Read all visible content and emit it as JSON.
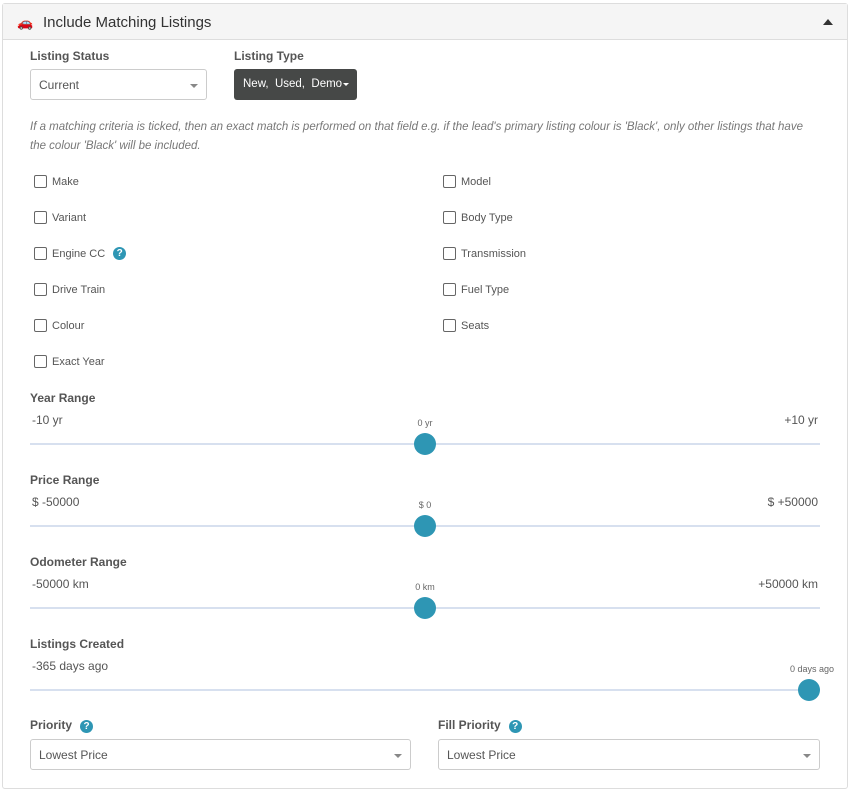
{
  "panel": {
    "title": "Include Matching Listings",
    "icon": "car-icon"
  },
  "listing_status": {
    "label": "Listing Status",
    "value": "Current"
  },
  "listing_type": {
    "label": "Listing Type",
    "value": "New,  Used,  Demo"
  },
  "note": "If a matching criteria is ticked, then an exact match is performed on that field e.g. if the lead's primary listing colour is 'Black', only other listings that have the colour 'Black' will be included.",
  "checkboxes": [
    {
      "label": "Make",
      "checked": false
    },
    {
      "label": "Model",
      "checked": false
    },
    {
      "label": "Variant",
      "checked": false
    },
    {
      "label": "Body Type",
      "checked": false
    },
    {
      "label": "Engine CC",
      "checked": false,
      "help": true
    },
    {
      "label": "Transmission",
      "checked": false
    },
    {
      "label": "Drive Train",
      "checked": false
    },
    {
      "label": "Fuel Type",
      "checked": false
    },
    {
      "label": "Colour",
      "checked": false
    },
    {
      "label": "Seats",
      "checked": false
    },
    {
      "label": "Exact Year",
      "checked": false
    }
  ],
  "sliders": [
    {
      "label": "Year Range",
      "min_label": "-10 yr",
      "max_label": "+10 yr",
      "value_label": "0 yr",
      "min": -10,
      "max": 10,
      "value": 0
    },
    {
      "label": "Price Range",
      "min_label": "$ -50000",
      "max_label": "$ +50000",
      "value_label": "$ 0",
      "min": -50000,
      "max": 50000,
      "value": 0
    },
    {
      "label": "Odometer Range",
      "min_label": "-50000 km",
      "max_label": "+50000 km",
      "value_label": "0 km",
      "min": -50000,
      "max": 50000,
      "value": 0
    },
    {
      "label": "Listings Created",
      "min_label": "-365 days ago",
      "max_label": "",
      "value_label": "0 days ago",
      "min": -365,
      "max": 0,
      "value": 0
    }
  ],
  "priority": {
    "label": "Priority",
    "value": "Lowest Price"
  },
  "fill_priority": {
    "label": "Fill Priority",
    "value": "Lowest Price"
  },
  "colors": {
    "accent": "#2e96b4",
    "track": "#d7e0ef",
    "dark_button": "#464847"
  }
}
